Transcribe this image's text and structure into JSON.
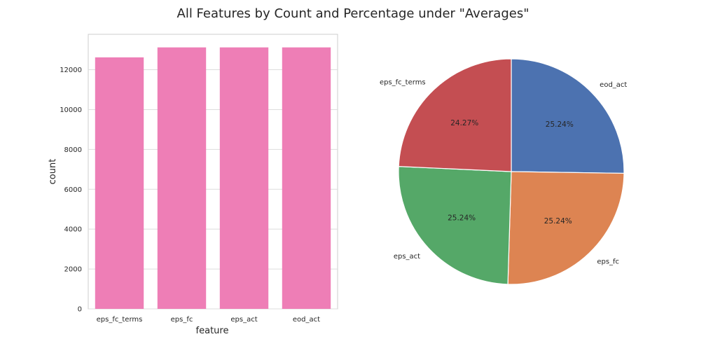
{
  "figure_title": "All Features by Count and Percentage under \"Averages\"",
  "chart_data": [
    {
      "type": "bar",
      "categories": [
        "eps_fc_terms",
        "eps_fc",
        "eps_act",
        "eod_act"
      ],
      "values": [
        12620,
        13120,
        13120,
        13120
      ],
      "xlabel": "feature",
      "ylabel": "count",
      "ylim": [
        0,
        13776
      ],
      "yticks": [
        0,
        2000,
        4000,
        6000,
        8000,
        10000,
        12000
      ],
      "grid": true,
      "bar_color": "#ee7eb6"
    },
    {
      "type": "pie",
      "labels": [
        "eod_act",
        "eps_fc",
        "eps_act",
        "eps_fc_terms"
      ],
      "percent_labels": [
        "25.24%",
        "25.24%",
        "25.24%",
        "24.27%"
      ],
      "values": [
        25.24,
        25.24,
        25.24,
        24.27
      ],
      "colors": [
        "#4c72b0",
        "#dd8452",
        "#55a868",
        "#c44e52"
      ],
      "start_angle": 90,
      "direction": "clockwise"
    }
  ]
}
